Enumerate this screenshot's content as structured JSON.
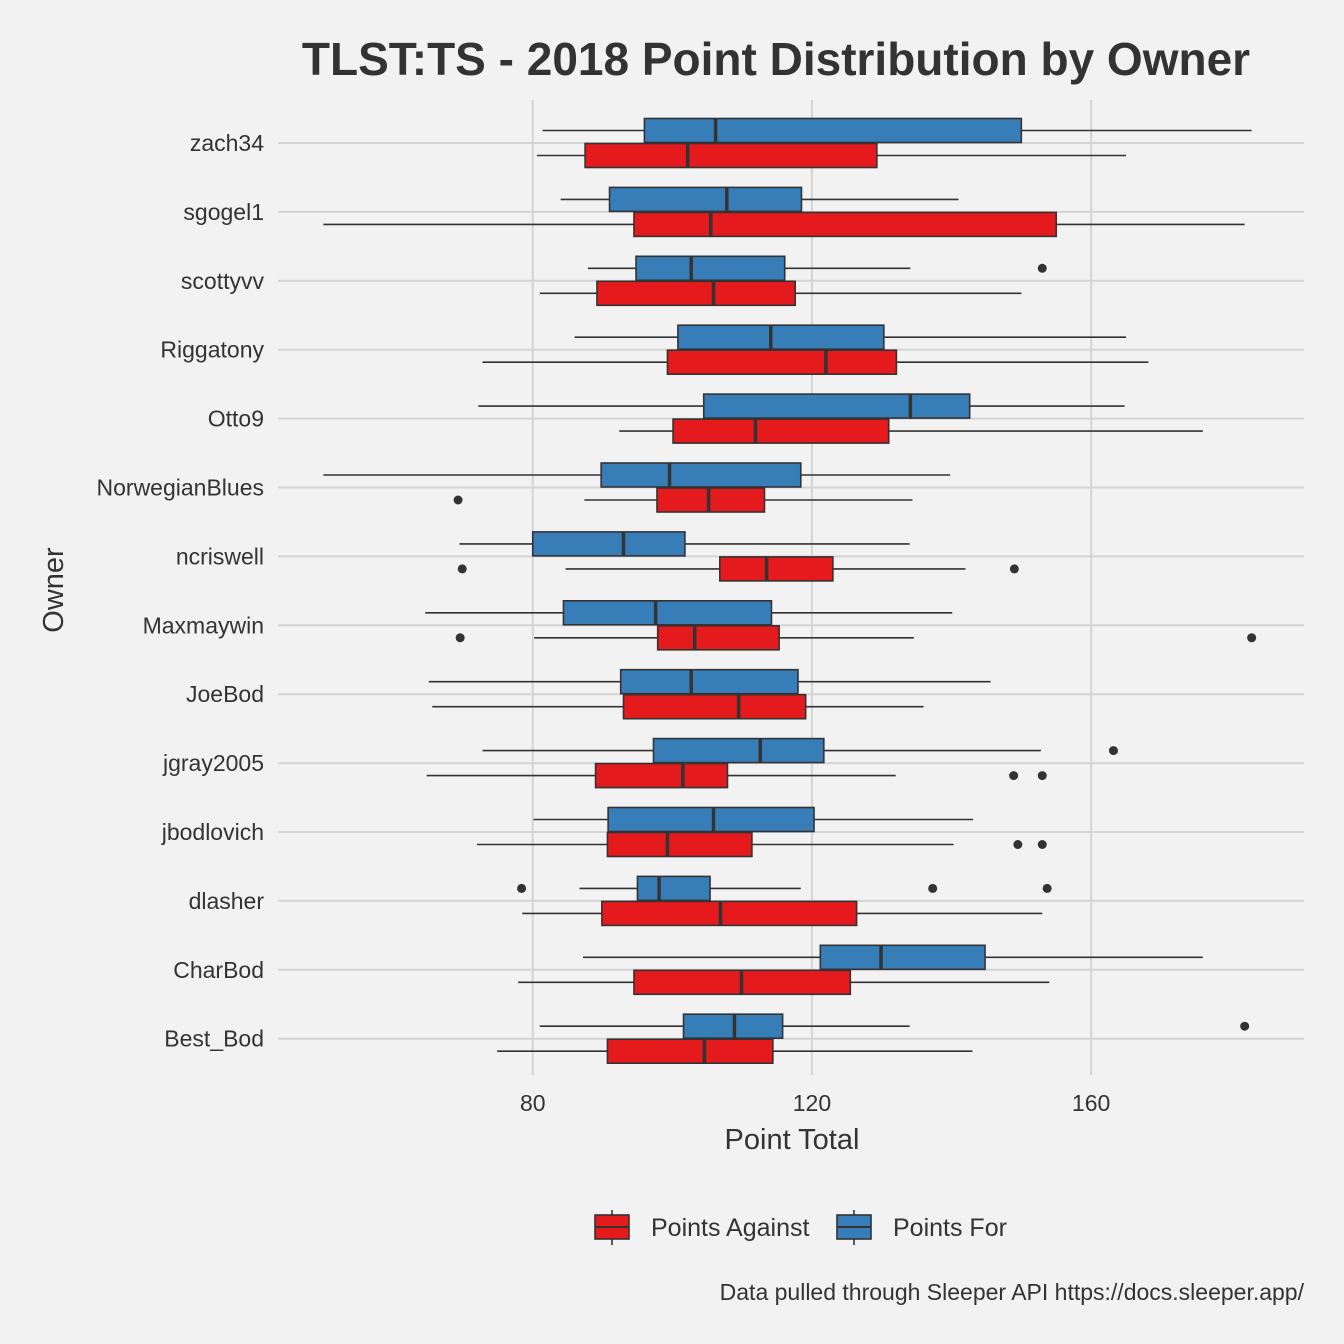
{
  "chart_data": {
    "type": "boxplot",
    "orientation": "horizontal",
    "title": "TLST:TS - 2018 Point Distribution by Owner",
    "xlabel": "Point Total",
    "ylabel": "Owner",
    "xlim": [
      43.5,
      190.5
    ],
    "xticks": [
      80,
      120,
      160
    ],
    "grid": true,
    "legend_position": "bottom",
    "caption": "Data pulled through Sleeper API https://docs.sleeper.app/",
    "categories": [
      "zach34",
      "sgogel1",
      "scottyvv",
      "Riggatony",
      "Otto9",
      "NorwegianBlues",
      "ncriswell",
      "Maxmaywin",
      "JoeBod",
      "jgray2005",
      "jbodlovich",
      "dlasher",
      "CharBod",
      "Best_Bod"
    ],
    "series": [
      {
        "name": "Points Against",
        "color": "#e41a1c",
        "boxes": [
          {
            "whisker_low": 80.6,
            "q1": 87.5,
            "median": 102.2,
            "q3": 129.3,
            "whisker_high": 165.0,
            "outliers": []
          },
          {
            "whisker_low": 50.0,
            "q1": 94.5,
            "median": 105.5,
            "q3": 155.0,
            "whisker_high": 182.0,
            "outliers": []
          },
          {
            "whisker_low": 81.0,
            "q1": 89.2,
            "median": 105.9,
            "q3": 117.6,
            "whisker_high": 150.0,
            "outliers": []
          },
          {
            "whisker_low": 72.8,
            "q1": 99.3,
            "median": 122.0,
            "q3": 132.1,
            "whisker_high": 168.2,
            "outliers": []
          },
          {
            "whisker_low": 92.4,
            "q1": 100.1,
            "median": 111.9,
            "q3": 131.0,
            "whisker_high": 176.0,
            "outliers": []
          },
          {
            "whisker_low": 87.4,
            "q1": 97.8,
            "median": 105.2,
            "q3": 113.2,
            "whisker_high": 134.4,
            "outliers": [
              69.3
            ]
          },
          {
            "whisker_low": 84.7,
            "q1": 106.8,
            "median": 113.5,
            "q3": 123.0,
            "whisker_high": 142.0,
            "outliers": [
              69.9,
              149.0
            ]
          },
          {
            "whisker_low": 80.2,
            "q1": 97.9,
            "median": 103.2,
            "q3": 115.3,
            "whisker_high": 134.6,
            "outliers": [
              69.6,
              183.0
            ]
          },
          {
            "whisker_low": 65.6,
            "q1": 93.0,
            "median": 109.5,
            "q3": 119.1,
            "whisker_high": 136.0,
            "outliers": []
          },
          {
            "whisker_low": 64.8,
            "q1": 89.0,
            "median": 101.5,
            "q3": 107.9,
            "whisker_high": 132.0,
            "outliers": [
              148.9,
              153.0
            ]
          },
          {
            "whisker_low": 72.0,
            "q1": 90.7,
            "median": 99.3,
            "q3": 111.4,
            "whisker_high": 140.3,
            "outliers": [
              149.5,
              153.0
            ]
          },
          {
            "whisker_low": 78.5,
            "q1": 89.9,
            "median": 106.9,
            "q3": 126.4,
            "whisker_high": 153.0,
            "outliers": []
          },
          {
            "whisker_low": 77.9,
            "q1": 94.5,
            "median": 109.9,
            "q3": 125.5,
            "whisker_high": 154.0,
            "outliers": []
          },
          {
            "whisker_low": 74.9,
            "q1": 90.7,
            "median": 104.6,
            "q3": 114.4,
            "whisker_high": 143.0,
            "outliers": []
          }
        ]
      },
      {
        "name": "Points For",
        "color": "#377eb8",
        "boxes": [
          {
            "whisker_low": 81.4,
            "q1": 96.0,
            "median": 106.2,
            "q3": 150.0,
            "whisker_high": 183.0,
            "outliers": []
          },
          {
            "whisker_low": 84.0,
            "q1": 91.0,
            "median": 107.8,
            "q3": 118.5,
            "whisker_high": 141.0,
            "outliers": []
          },
          {
            "whisker_low": 87.9,
            "q1": 94.8,
            "median": 102.7,
            "q3": 116.1,
            "whisker_high": 134.1,
            "outliers": [
              153.0
            ]
          },
          {
            "whisker_low": 86.0,
            "q1": 100.8,
            "median": 114.1,
            "q3": 130.3,
            "whisker_high": 165.0,
            "outliers": []
          },
          {
            "whisker_low": 72.2,
            "q1": 104.5,
            "median": 134.1,
            "q3": 142.6,
            "whisker_high": 164.8,
            "outliers": []
          },
          {
            "whisker_low": 50.0,
            "q1": 89.8,
            "median": 99.6,
            "q3": 118.4,
            "whisker_high": 139.8,
            "outliers": []
          },
          {
            "whisker_low": 69.5,
            "q1": 80.0,
            "median": 93.0,
            "q3": 101.8,
            "whisker_high": 134.0,
            "outliers": []
          },
          {
            "whisker_low": 64.6,
            "q1": 84.4,
            "median": 97.6,
            "q3": 114.2,
            "whisker_high": 140.1,
            "outliers": []
          },
          {
            "whisker_low": 65.1,
            "q1": 92.6,
            "median": 102.7,
            "q3": 118.0,
            "whisker_high": 145.6,
            "outliers": []
          },
          {
            "whisker_low": 72.8,
            "q1": 97.3,
            "median": 112.6,
            "q3": 121.7,
            "whisker_high": 152.8,
            "outliers": [
              163.2
            ]
          },
          {
            "whisker_low": 80.1,
            "q1": 90.8,
            "median": 105.9,
            "q3": 120.3,
            "whisker_high": 143.1,
            "outliers": []
          },
          {
            "whisker_low": 86.7,
            "q1": 95.0,
            "median": 98.1,
            "q3": 105.4,
            "whisker_high": 118.4,
            "outliers": [
              78.4,
              137.3,
              153.7
            ]
          },
          {
            "whisker_low": 87.2,
            "q1": 121.2,
            "median": 129.9,
            "q3": 144.8,
            "whisker_high": 176.0,
            "outliers": []
          },
          {
            "whisker_low": 81.0,
            "q1": 101.6,
            "median": 108.9,
            "q3": 115.8,
            "whisker_high": 134.0,
            "outliers": [
              182.0
            ]
          }
        ]
      }
    ]
  }
}
